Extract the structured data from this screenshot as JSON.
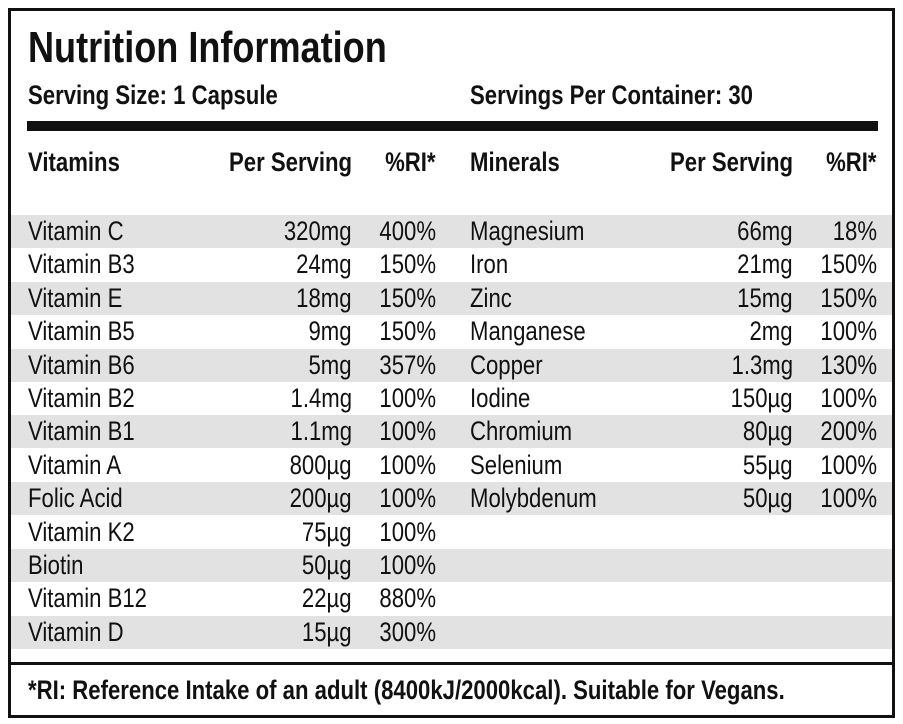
{
  "header": {
    "title": "Nutrition Information",
    "serving_size": "Serving Size: 1 Capsule",
    "servings_per_container": "Servings Per Container: 30"
  },
  "table": {
    "vitamin_columns": [
      "Vitamins",
      "Per Serving",
      "%RI*"
    ],
    "mineral_columns": [
      "Minerals",
      "Per Serving",
      "%RI*"
    ],
    "vitamins": [
      [
        "Vitamin C",
        "320mg",
        "400%"
      ],
      [
        "Vitamin B3",
        "24mg",
        "150%"
      ],
      [
        "Vitamin E",
        "18mg",
        "150%"
      ],
      [
        "Vitamin B5",
        "9mg",
        "150%"
      ],
      [
        "Vitamin B6",
        "5mg",
        "357%"
      ],
      [
        "Vitamin B2",
        "1.4mg",
        "100%"
      ],
      [
        "Vitamin B1",
        "1.1mg",
        "100%"
      ],
      [
        "Vitamin A",
        "800µg",
        "100%"
      ],
      [
        "Folic Acid",
        "200µg",
        "100%"
      ],
      [
        "Vitamin K2",
        "75µg",
        "100%"
      ],
      [
        "Biotin",
        "50µg",
        "100%"
      ],
      [
        "Vitamin B12",
        "22µg",
        "880%"
      ],
      [
        "Vitamin D",
        "15µg",
        "300%"
      ]
    ],
    "minerals": [
      [
        "Magnesium",
        "66mg",
        "18%"
      ],
      [
        "Iron",
        "21mg",
        "150%"
      ],
      [
        "Zinc",
        "15mg",
        "150%"
      ],
      [
        "Manganese",
        "2mg",
        "100%"
      ],
      [
        "Copper",
        "1.3mg",
        "130%"
      ],
      [
        "Iodine",
        "150µg",
        "100%"
      ],
      [
        "Chromium",
        "80µg",
        "200%"
      ],
      [
        "Selenium",
        "55µg",
        "100%"
      ],
      [
        "Molybdenum",
        "50µg",
        "100%"
      ]
    ]
  },
  "footer": "*RI: Reference Intake of an adult (8400kJ/2000kcal). Suitable for Vegans."
}
